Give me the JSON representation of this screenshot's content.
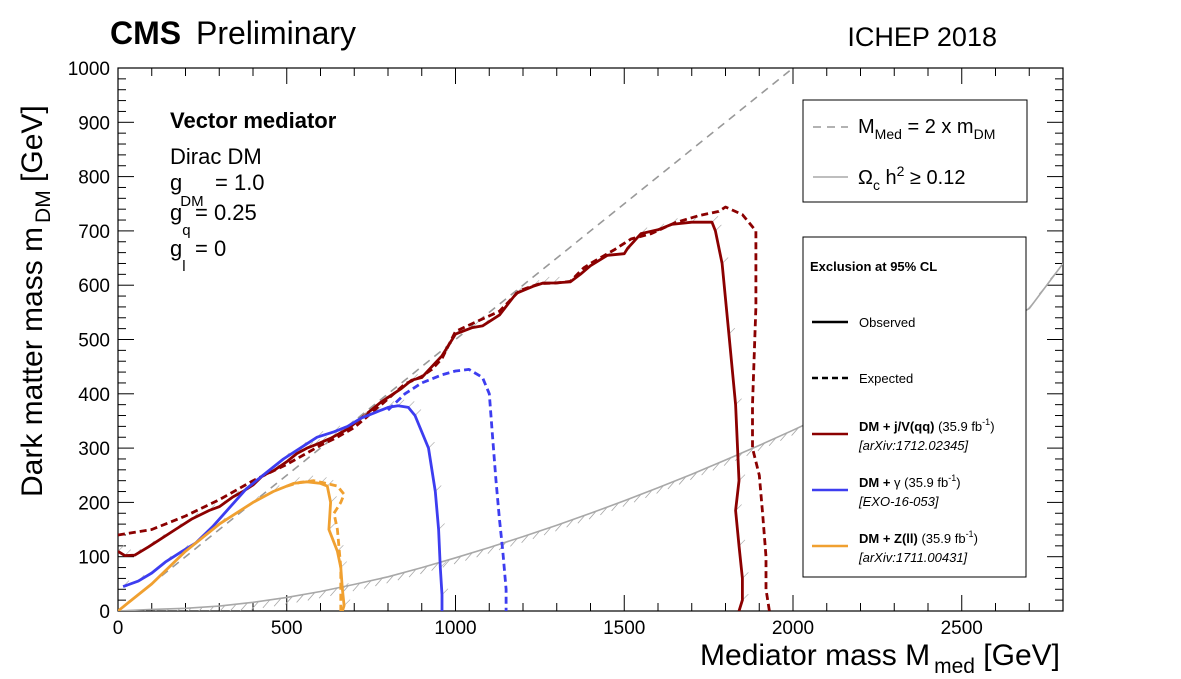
{
  "header": {
    "collab": "CMS",
    "status": "Preliminary",
    "conference": "ICHEP 2018"
  },
  "model_text": {
    "title": "Vector mediator",
    "line_dm": "Dirac DM",
    "gdm_label": "g",
    "gdm_sub": "DM",
    "gdm_value": "= 1.0",
    "gq_label": "g",
    "gq_sub": "q",
    "gq_value": "= 0.25",
    "gl_label": "g",
    "gl_sub": "l",
    "gl_value": "= 0"
  },
  "top_legend": {
    "diag_pre": "M",
    "diag_sub1": "Med",
    "diag_mid": " = 2 x m",
    "diag_sub2": "DM",
    "relic_pre": "Ω",
    "relic_sub": "c",
    "relic_mid": " h",
    "relic_sup": "2",
    "relic_post": " ≥ 0.12"
  },
  "legend": {
    "title": "Exclusion at 95% CL",
    "observed": "Observed",
    "expected": "Expected",
    "entries": [
      {
        "bold": "DM + j/V(qq)",
        "lumi_pre": " (35.9 fb",
        "lumi_sup": "-1",
        "lumi_post": ")",
        "ref": "[arXiv:1712.02345]",
        "color": "#8b0000"
      },
      {
        "bold": "DM + ",
        "sym": "γ",
        "lumi_pre": " (35.9 fb",
        "lumi_sup": "-1",
        "lumi_post": ")",
        "ref": "[EXO-16-053]",
        "color": "#3d3df0"
      },
      {
        "bold": "DM + Z(ll)",
        "lumi_pre": " (35.9 fb",
        "lumi_sup": "-1",
        "lumi_post": ")",
        "ref": "[arXiv:1711.00431]",
        "color": "#f0a030"
      }
    ]
  },
  "axes": {
    "xlabel_main": "Mediator mass M",
    "xlabel_sub": "med",
    "xlabel_unit": " [GeV]",
    "ylabel_main": "Dark matter mass m",
    "ylabel_sub": "DM",
    "ylabel_unit": " [GeV]"
  },
  "chart_data": {
    "type": "line",
    "xlim": [
      0,
      2800
    ],
    "ylim": [
      0,
      1000
    ],
    "x_ticks": [
      0,
      500,
      1000,
      1500,
      2000,
      2500
    ],
    "y_ticks": [
      0,
      100,
      200,
      300,
      400,
      500,
      600,
      700,
      800,
      900,
      1000
    ],
    "diagonal": {
      "name": "M_Med = 2 x m_DM",
      "x": [
        0,
        2000
      ],
      "y": [
        0,
        1000
      ],
      "color": "#999999"
    },
    "relic": {
      "name": "Ωc h² ≥ 0.12",
      "color": "#a8a8a8",
      "x": [
        0,
        100,
        200,
        300,
        400,
        500,
        600,
        700,
        800,
        900,
        1000,
        1100,
        1200,
        1300,
        1400,
        1500,
        1600,
        1700,
        1800,
        1900,
        2000,
        2100,
        2200,
        2300,
        2400,
        2500,
        2600,
        2700,
        2800
      ],
      "y": [
        0,
        3,
        5,
        9,
        16,
        25,
        36,
        49,
        63,
        80,
        98,
        117,
        137,
        158,
        180,
        203,
        227,
        252,
        278,
        305,
        333,
        362,
        392,
        423,
        455,
        488,
        522,
        557,
        640
      ]
    },
    "series": [
      {
        "name": "DM + j/V(qq) Observed",
        "color": "#8b0000",
        "dashed": false,
        "x": [
          0,
          20,
          50,
          90,
          120,
          170,
          220,
          270,
          300,
          340,
          370,
          400,
          430,
          460,
          500,
          530,
          560,
          580,
          600,
          630,
          680,
          700,
          740,
          780,
          840,
          870,
          900,
          930,
          960,
          1000,
          1050,
          1080,
          1130,
          1180,
          1230,
          1260,
          1290,
          1340,
          1370,
          1400,
          1450,
          1500,
          1510,
          1550,
          1600,
          1640,
          1700,
          1760,
          1770,
          1790,
          1810,
          1830,
          1840,
          1830,
          1840,
          1850,
          1850,
          1840
        ],
        "y": [
          110,
          102,
          103,
          118,
          130,
          150,
          170,
          185,
          192,
          210,
          220,
          232,
          250,
          258,
          275,
          290,
          300,
          305,
          310,
          318,
          335,
          345,
          365,
          385,
          410,
          425,
          430,
          450,
          470,
          510,
          522,
          525,
          545,
          585,
          598,
          604,
          604,
          606,
          620,
          636,
          655,
          658,
          668,
          695,
          702,
          712,
          716,
          716,
          700,
          640,
          510,
          380,
          240,
          185,
          120,
          60,
          20,
          0
        ]
      },
      {
        "name": "DM + j/V(qq) Expected",
        "color": "#8b0000",
        "dashed": true,
        "x": [
          0,
          100,
          200,
          300,
          400,
          500,
          600,
          650,
          700,
          780,
          850,
          900,
          930,
          960,
          1000,
          1070,
          1130,
          1190,
          1250,
          1300,
          1340,
          1380,
          1400,
          1470,
          1520,
          1580,
          1650,
          1720,
          1780,
          1800,
          1850,
          1890,
          1890,
          1880,
          1880,
          1900,
          1910,
          1920,
          1920,
          1930
        ],
        "y": [
          140,
          150,
          175,
          205,
          240,
          270,
          305,
          320,
          338,
          380,
          418,
          432,
          445,
          465,
          515,
          535,
          552,
          590,
          603,
          604,
          607,
          632,
          640,
          665,
          685,
          695,
          715,
          728,
          736,
          744,
          730,
          700,
          560,
          380,
          300,
          250,
          180,
          100,
          40,
          0
        ]
      },
      {
        "name": "DM + γ Observed",
        "color": "#3d3df0",
        "dashed": false,
        "x": [
          15,
          60,
          100,
          140,
          190,
          230,
          280,
          330,
          380,
          440,
          490,
          540,
          590,
          640,
          680,
          720,
          760,
          800,
          830,
          860,
          880,
          920,
          940,
          950,
          955,
          960,
          960
        ],
        "y": [
          45,
          55,
          70,
          90,
          110,
          125,
          155,
          190,
          225,
          255,
          280,
          300,
          320,
          330,
          340,
          355,
          365,
          375,
          378,
          375,
          360,
          300,
          220,
          150,
          80,
          30,
          0
        ]
      },
      {
        "name": "DM + γ Expected",
        "color": "#3d3df0",
        "dashed": true,
        "x": [
          800,
          850,
          900,
          960,
          1000,
          1040,
          1080,
          1100,
          1110,
          1120,
          1130,
          1140,
          1150,
          1150
        ],
        "y": [
          370,
          400,
          420,
          435,
          442,
          445,
          430,
          400,
          320,
          240,
          170,
          110,
          40,
          0
        ]
      },
      {
        "name": "DM + Z(ll) Observed",
        "color": "#f0a030",
        "dashed": false,
        "x": [
          0,
          40,
          100,
          200,
          300,
          400,
          460,
          520,
          560,
          600,
          620,
          630,
          625,
          650,
          660,
          665,
          670,
          665
        ],
        "y": [
          0,
          20,
          50,
          110,
          160,
          200,
          220,
          235,
          238,
          235,
          230,
          200,
          150,
          110,
          80,
          40,
          10,
          0
        ]
      },
      {
        "name": "DM + Z(ll) Expected",
        "color": "#f0a030",
        "dashed": true,
        "x": [
          500,
          540,
          580,
          610,
          650,
          670,
          660,
          640,
          650,
          660,
          660
        ],
        "y": [
          230,
          237,
          240,
          236,
          230,
          215,
          200,
          180,
          150,
          80,
          0
        ]
      }
    ]
  }
}
